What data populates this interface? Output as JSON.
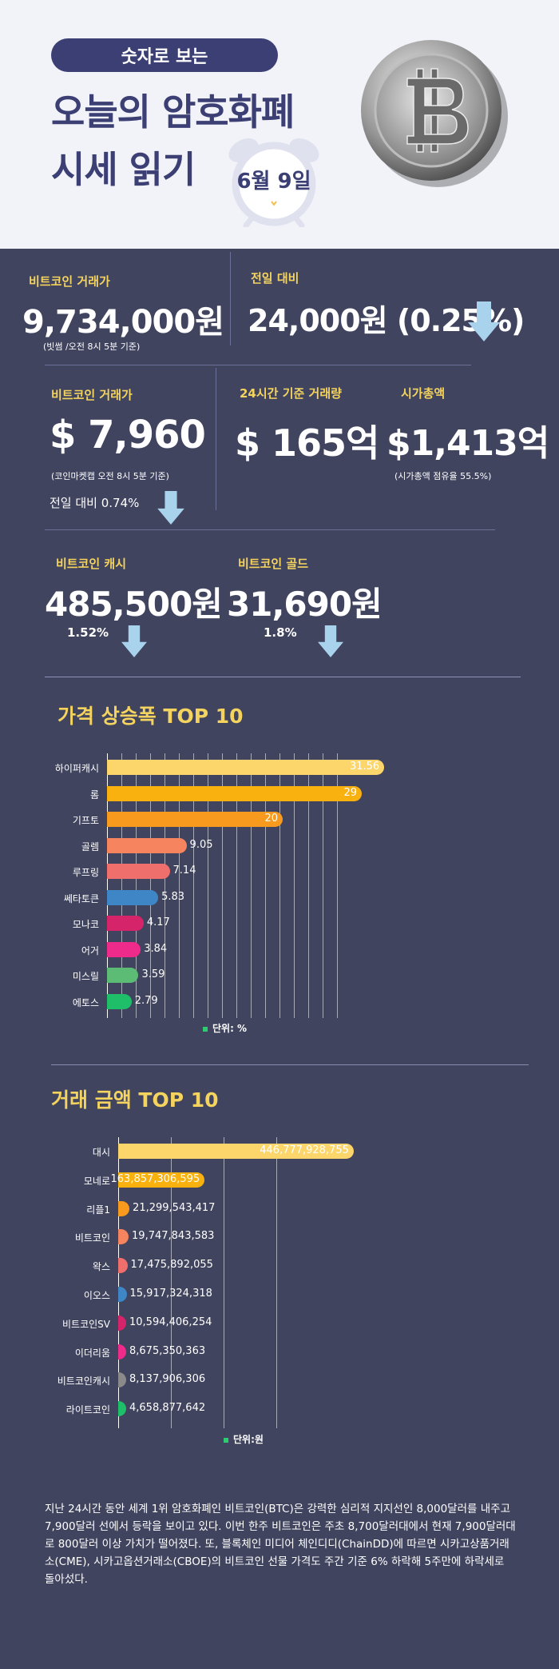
{
  "hero": {
    "pill": "숫자로 보는",
    "title_line1": "오늘의 암호화폐",
    "title_line2": "시세 읽기",
    "date": "6월 9일"
  },
  "colors": {
    "accent_yellow": "#f4d35e",
    "navy": "#3b3f74",
    "background": "#40445f",
    "arrow_blue": "#a9d2ec"
  },
  "stats": {
    "btc_krw": {
      "label": "비트코인 거래가",
      "value": "9,734,000원",
      "note": "(빗썸 /오전 8시 5분 기준)"
    },
    "btc_krw_change": {
      "label": "전일 대비",
      "value": "24,000원 (0.25%)",
      "icon": "down-arrow"
    },
    "btc_usd": {
      "label": "비트코인 거래가",
      "value": "$ 7,960",
      "note": "(코인마켓캡 오전 8시 5분 기준)",
      "change": "전일 대비 0.74%"
    },
    "volume": {
      "label": "24시간 기준 거래량",
      "value": "$ 165억"
    },
    "market_cap": {
      "label": "시가총액",
      "value": "$1,413억",
      "note": "(시가총액 점유율 55.5%)"
    },
    "bch": {
      "label": "비트코인 캐시",
      "value": "485,500원",
      "change": "1.52%"
    },
    "btg": {
      "label": "비트코인 골드",
      "value": "31,690원",
      "change": "1.8%"
    }
  },
  "chart_data": [
    {
      "type": "bar",
      "orientation": "horizontal",
      "title": "가격 상승폭 TOP 10",
      "unit": "단위: %",
      "categories": [
        "하이퍼캐시",
        "롬",
        "기프토",
        "골렘",
        "루프링",
        "쎄타토큰",
        "모나코",
        "어거",
        "미스릴",
        "에토스"
      ],
      "values": [
        31.56,
        29,
        20,
        9.05,
        7.14,
        5.83,
        4.17,
        3.84,
        3.59,
        2.79
      ],
      "labels": [
        "31.56",
        "29",
        "20",
        "9.05",
        "7.14",
        "5.83",
        "4.17",
        "3.84",
        "3.59",
        "2.79"
      ],
      "colors": [
        "#fdd66b",
        "#f9b10f",
        "#f79a1e",
        "#f6845e",
        "#ef6f6c",
        "#3f86c6",
        "#d6246a",
        "#ee2b8a",
        "#5cbb74",
        "#1fbf6a"
      ],
      "xlim": [
        0,
        36
      ]
    },
    {
      "type": "bar",
      "orientation": "horizontal",
      "title": "거래 금액 TOP 10",
      "unit": "단위:원",
      "categories": [
        "대시",
        "모네로",
        "리플1",
        "비트코인",
        "왁스",
        "이오스",
        "비트코인SV",
        "이더리움",
        "비트코인캐시",
        "라이트코인"
      ],
      "values": [
        446777928755,
        163857306595,
        21299543417,
        19747843583,
        17475892055,
        15917324318,
        10594406254,
        8675350363,
        8137906306,
        4658877642
      ],
      "labels": [
        "446,777,928,755",
        "163,857,306,595",
        "21,299,543,417",
        "19,747,843,583",
        "17,475,892,055",
        "15,917,324,318",
        "10,594,406,254",
        "8,675,350,363",
        "8,137,906,306",
        "4,658,877,642"
      ],
      "colors": [
        "#fdd66b",
        "#f9b10f",
        "#f79a1e",
        "#f6845e",
        "#ef6f6c",
        "#3f86c6",
        "#d6246a",
        "#ee2b8a",
        "#8a8a8a",
        "#1fbf6a"
      ],
      "xlim": [
        0,
        500000000000
      ]
    }
  ],
  "body_text": "지난 24시간 동안 세계 1위 암호화폐인 비트코인(BTC)은 강력한 심리적 지지선인 8,000달러를 내주고 7,900달러 선에서 등락을 보이고 있다. 이번 한주 비트코인은 주초 8,700달러대에서 현재 7,900달러대로 800달러 이상 가치가 떨어졌다. 또, 블록체인 미디어 체인디디(ChainDD)에 따르면 시카고상품거래소(CME), 시카고옵션거래소(CBOE)의 비트코인 선물 가격도 주간 기준 6% 하락해 5주만에 하락세로 돌아섰다."
}
